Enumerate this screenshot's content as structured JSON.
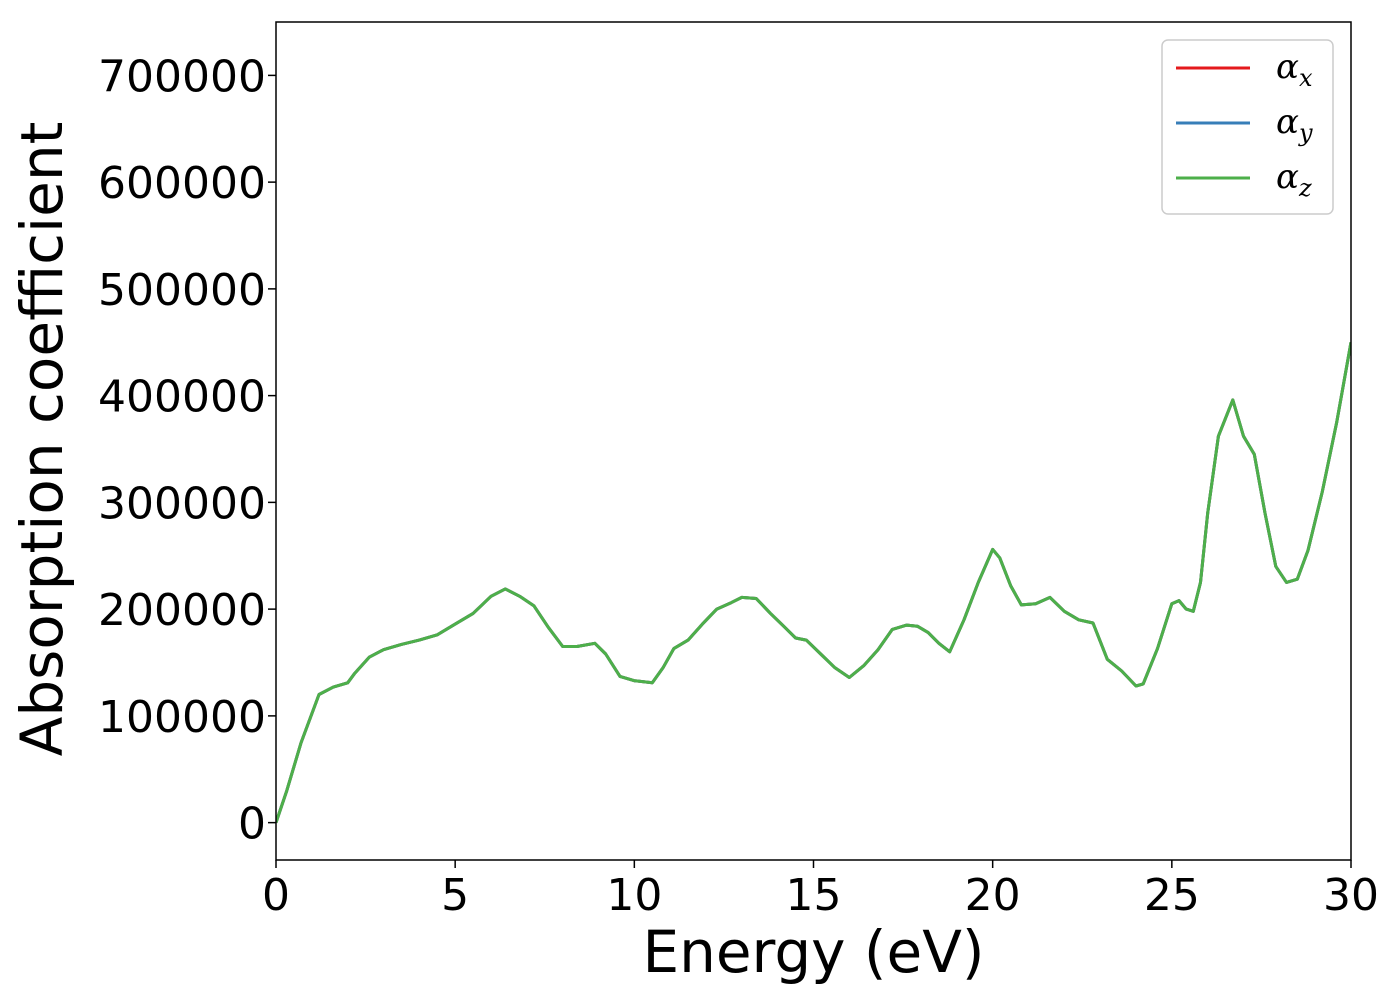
{
  "chart_data": {
    "type": "line",
    "xlabel": "Energy (eV)",
    "ylabel": "Absorption coefficient",
    "xlim": [
      0,
      30
    ],
    "ylim": [
      -35000,
      750000
    ],
    "xticks": [
      0,
      5,
      10,
      15,
      20,
      25,
      30
    ],
    "yticks": [
      0,
      100000,
      200000,
      300000,
      400000,
      500000,
      600000,
      700000
    ],
    "xtick_labels": [
      "0",
      "5",
      "10",
      "15",
      "20",
      "25",
      "30"
    ],
    "ytick_labels": [
      "0",
      "100000",
      "200000",
      "300000",
      "400000",
      "500000",
      "600000",
      "700000"
    ],
    "grid": false,
    "legend": {
      "placement": "top-right",
      "entries": [
        {
          "symbol": "α",
          "subscript": "x"
        },
        {
          "symbol": "α",
          "subscript": "y"
        },
        {
          "symbol": "α",
          "subscript": "z"
        }
      ]
    },
    "x": [
      0,
      0.3,
      0.7,
      1.2,
      1.6,
      2.0,
      2.2,
      2.6,
      3.0,
      3.5,
      4.0,
      4.5,
      5.0,
      5.5,
      6.0,
      6.4,
      6.8,
      7.2,
      7.6,
      8.0,
      8.4,
      8.9,
      9.2,
      9.6,
      10.0,
      10.5,
      10.8,
      11.1,
      11.5,
      11.9,
      12.3,
      12.7,
      13.0,
      13.4,
      13.8,
      14.2,
      14.5,
      14.8,
      15.2,
      15.6,
      16.0,
      16.4,
      16.8,
      17.2,
      17.6,
      17.9,
      18.2,
      18.5,
      18.8,
      19.2,
      19.6,
      20.0,
      20.2,
      20.5,
      20.8,
      21.2,
      21.6,
      22.0,
      22.4,
      22.8,
      23.2,
      23.6,
      24.0,
      24.2,
      24.6,
      25.0,
      25.2,
      25.4,
      25.6,
      25.8,
      26.0,
      26.3,
      26.7,
      27.0,
      27.3,
      27.6,
      27.9,
      28.2,
      28.5,
      28.8,
      29.2,
      29.6,
      30.0
    ],
    "series": [
      {
        "legend_index": 0,
        "color": "#e41a1c",
        "values": [
          0,
          30000,
          75000,
          120000,
          127000,
          131000,
          140000,
          155000,
          162000,
          167000,
          171000,
          176000,
          186000,
          196000,
          212000,
          219000,
          212000,
          203000,
          183000,
          165000,
          165000,
          168000,
          158000,
          137000,
          133000,
          131000,
          145000,
          163000,
          171000,
          186000,
          200000,
          206000,
          211000,
          210000,
          196000,
          183000,
          173000,
          171000,
          158000,
          145000,
          136000,
          147000,
          162000,
          181000,
          185000,
          184000,
          178000,
          168000,
          160000,
          190000,
          225000,
          256000,
          248000,
          222000,
          204000,
          205000,
          211000,
          198000,
          190000,
          187000,
          153000,
          142000,
          128000,
          130000,
          163000,
          205000,
          208000,
          200000,
          198000,
          225000,
          290000,
          362000,
          396000,
          362000,
          345000,
          290000,
          240000,
          225000,
          228000,
          255000,
          310000,
          375000,
          450000
        ]
      },
      {
        "legend_index": 1,
        "color": "#377eb8",
        "values": [
          0,
          30000,
          75000,
          120000,
          127000,
          131000,
          140000,
          155000,
          162000,
          167000,
          171000,
          176000,
          186000,
          196000,
          212000,
          219000,
          212000,
          203000,
          183000,
          165000,
          165000,
          168000,
          158000,
          137000,
          133000,
          131000,
          145000,
          163000,
          171000,
          186000,
          200000,
          206000,
          211000,
          210000,
          196000,
          183000,
          173000,
          171000,
          158000,
          145000,
          136000,
          147000,
          162000,
          181000,
          185000,
          184000,
          178000,
          168000,
          160000,
          190000,
          225000,
          256000,
          248000,
          222000,
          204000,
          205000,
          211000,
          198000,
          190000,
          187000,
          153000,
          142000,
          128000,
          130000,
          163000,
          205000,
          208000,
          200000,
          198000,
          225000,
          290000,
          362000,
          396000,
          362000,
          345000,
          290000,
          240000,
          225000,
          228000,
          255000,
          310000,
          375000,
          450000
        ]
      },
      {
        "legend_index": 2,
        "color": "#4daf4a",
        "values": [
          0,
          30000,
          75000,
          120000,
          127000,
          131000,
          140000,
          155000,
          162000,
          167000,
          171000,
          176000,
          186000,
          196000,
          212000,
          219000,
          212000,
          203000,
          183000,
          165000,
          165000,
          168000,
          158000,
          137000,
          133000,
          131000,
          145000,
          163000,
          171000,
          186000,
          200000,
          206000,
          211000,
          210000,
          196000,
          183000,
          173000,
          171000,
          158000,
          145000,
          136000,
          147000,
          162000,
          181000,
          185000,
          184000,
          178000,
          168000,
          160000,
          190000,
          225000,
          256000,
          248000,
          222000,
          204000,
          205000,
          211000,
          198000,
          190000,
          187000,
          153000,
          142000,
          128000,
          130000,
          163000,
          205000,
          208000,
          200000,
          198000,
          225000,
          290000,
          362000,
          396000,
          362000,
          345000,
          290000,
          240000,
          225000,
          228000,
          255000,
          310000,
          375000,
          450000
        ]
      }
    ]
  }
}
